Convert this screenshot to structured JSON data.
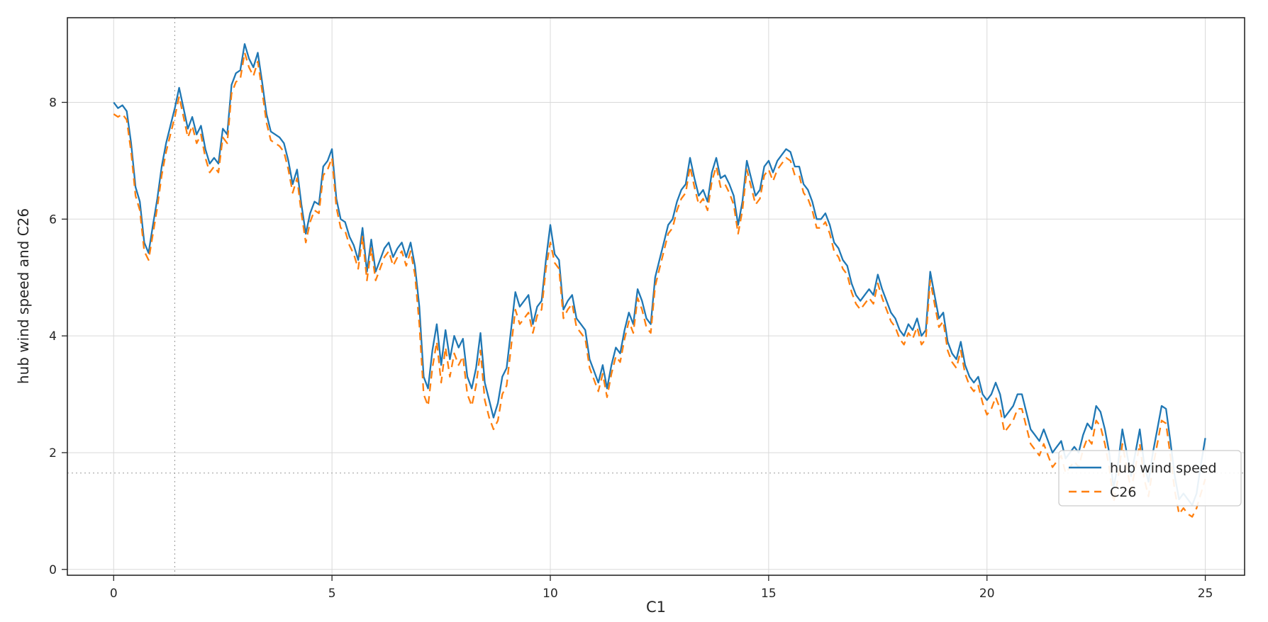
{
  "chart_data": {
    "type": "line",
    "xlabel": "C1",
    "ylabel": "hub wind speed and C26",
    "xlim": [
      -1.06,
      25.9
    ],
    "ylim": [
      -0.1,
      9.45
    ],
    "x_ticks": [
      0,
      5,
      10,
      15,
      20,
      25
    ],
    "y_ticks": [
      0,
      2,
      4,
      6,
      8
    ],
    "grid": true,
    "legend_position": "lower right",
    "crosshair": {
      "x": 1.4,
      "y": 1.65
    },
    "x": [
      0,
      0.1,
      0.2,
      0.3,
      0.4,
      0.5,
      0.6,
      0.7,
      0.8,
      0.9,
      1,
      1.1,
      1.2,
      1.3,
      1.4,
      1.5,
      1.6,
      1.7,
      1.8,
      1.9,
      2,
      2.1,
      2.2,
      2.3,
      2.4,
      2.5,
      2.6,
      2.7,
      2.8,
      2.9,
      3,
      3.1,
      3.2,
      3.3,
      3.4,
      3.5,
      3.6,
      3.7,
      3.8,
      3.9,
      4,
      4.1,
      4.2,
      4.3,
      4.4,
      4.5,
      4.6,
      4.7,
      4.8,
      4.9,
      5,
      5.1,
      5.2,
      5.3,
      5.4,
      5.5,
      5.6,
      5.7,
      5.8,
      5.9,
      6,
      6.1,
      6.2,
      6.3,
      6.4,
      6.5,
      6.6,
      6.7,
      6.8,
      6.9,
      7,
      7.1,
      7.2,
      7.3,
      7.4,
      7.5,
      7.6,
      7.7,
      7.8,
      7.9,
      8,
      8.1,
      8.2,
      8.3,
      8.4,
      8.5,
      8.6,
      8.7,
      8.8,
      8.9,
      9,
      9.1,
      9.2,
      9.3,
      9.4,
      9.5,
      9.6,
      9.7,
      9.8,
      9.9,
      10,
      10.1,
      10.2,
      10.3,
      10.4,
      10.5,
      10.6,
      10.7,
      10.8,
      10.9,
      11,
      11.1,
      11.2,
      11.3,
      11.4,
      11.5,
      11.6,
      11.7,
      11.8,
      11.9,
      12,
      12.1,
      12.2,
      12.3,
      12.4,
      12.5,
      12.6,
      12.7,
      12.8,
      12.9,
      13,
      13.1,
      13.2,
      13.3,
      13.4,
      13.5,
      13.6,
      13.7,
      13.8,
      13.9,
      14,
      14.1,
      14.2,
      14.3,
      14.4,
      14.5,
      14.6,
      14.7,
      14.8,
      14.9,
      15,
      15.1,
      15.2,
      15.3,
      15.4,
      15.5,
      15.6,
      15.7,
      15.8,
      15.9,
      16,
      16.1,
      16.2,
      16.3,
      16.4,
      16.5,
      16.6,
      16.7,
      16.8,
      16.9,
      17,
      17.1,
      17.2,
      17.3,
      17.4,
      17.5,
      17.6,
      17.7,
      17.8,
      17.9,
      18,
      18.1,
      18.2,
      18.3,
      18.4,
      18.5,
      18.6,
      18.7,
      18.8,
      18.9,
      19,
      19.1,
      19.2,
      19.3,
      19.4,
      19.5,
      19.6,
      19.7,
      19.8,
      19.9,
      20,
      20.1,
      20.2,
      20.3,
      20.4,
      20.5,
      20.6,
      20.7,
      20.8,
      20.9,
      21,
      21.1,
      21.2,
      21.3,
      21.4,
      21.5,
      21.6,
      21.7,
      21.8,
      21.9,
      22,
      22.1,
      22.2,
      22.3,
      22.4,
      22.5,
      22.6,
      22.7,
      22.8,
      22.9,
      23,
      23.1,
      23.2,
      23.3,
      23.4,
      23.5,
      23.6,
      23.7,
      23.8,
      23.9,
      24,
      24.1,
      24.2,
      24.3,
      24.4,
      24.5,
      24.6,
      24.7,
      24.8,
      24.9,
      25
    ],
    "series": [
      {
        "name": "hub wind speed",
        "color": "#1f77b4",
        "style": "solid",
        "values": [
          8.0,
          7.9,
          7.95,
          7.85,
          7.3,
          6.55,
          6.3,
          5.6,
          5.42,
          5.9,
          6.35,
          6.9,
          7.3,
          7.6,
          7.9,
          8.25,
          7.9,
          7.55,
          7.75,
          7.45,
          7.6,
          7.2,
          6.95,
          7.05,
          6.95,
          7.55,
          7.45,
          8.3,
          8.5,
          8.55,
          9.0,
          8.75,
          8.6,
          8.85,
          8.35,
          7.8,
          7.5,
          7.45,
          7.4,
          7.3,
          7.0,
          6.6,
          6.85,
          6.25,
          5.75,
          6.1,
          6.3,
          6.25,
          6.9,
          7.0,
          7.2,
          6.35,
          6.0,
          5.95,
          5.7,
          5.55,
          5.3,
          5.85,
          5.1,
          5.65,
          5.1,
          5.3,
          5.5,
          5.6,
          5.35,
          5.5,
          5.6,
          5.35,
          5.6,
          5.2,
          4.5,
          3.3,
          3.1,
          3.75,
          4.2,
          3.5,
          4.1,
          3.6,
          4.0,
          3.8,
          3.95,
          3.3,
          3.1,
          3.45,
          4.05,
          3.2,
          2.9,
          2.6,
          2.85,
          3.3,
          3.45,
          4.1,
          4.75,
          4.5,
          4.6,
          4.7,
          4.2,
          4.5,
          4.6,
          5.3,
          5.9,
          5.4,
          5.3,
          4.45,
          4.6,
          4.7,
          4.3,
          4.2,
          4.1,
          3.6,
          3.4,
          3.2,
          3.5,
          3.1,
          3.5,
          3.8,
          3.7,
          4.1,
          4.4,
          4.2,
          4.8,
          4.6,
          4.3,
          4.2,
          5.0,
          5.3,
          5.6,
          5.9,
          6.0,
          6.3,
          6.5,
          6.6,
          7.05,
          6.7,
          6.4,
          6.5,
          6.3,
          6.8,
          7.05,
          6.7,
          6.75,
          6.6,
          6.4,
          5.9,
          6.3,
          7.0,
          6.7,
          6.4,
          6.5,
          6.9,
          7.0,
          6.8,
          7.0,
          7.1,
          7.2,
          7.15,
          6.9,
          6.9,
          6.6,
          6.5,
          6.3,
          6.0,
          6.0,
          6.1,
          5.9,
          5.6,
          5.5,
          5.3,
          5.2,
          4.9,
          4.7,
          4.6,
          4.7,
          4.8,
          4.7,
          5.05,
          4.8,
          4.6,
          4.4,
          4.3,
          4.1,
          4.0,
          4.2,
          4.1,
          4.3,
          4.0,
          4.1,
          5.1,
          4.7,
          4.3,
          4.4,
          3.9,
          3.7,
          3.6,
          3.9,
          3.5,
          3.3,
          3.2,
          3.3,
          3.0,
          2.9,
          3.0,
          3.2,
          3.0,
          2.6,
          2.7,
          2.8,
          3.0,
          3.0,
          2.7,
          2.4,
          2.3,
          2.2,
          2.4,
          2.2,
          2.0,
          2.1,
          2.2,
          1.9,
          2.0,
          2.1,
          2.0,
          2.3,
          2.5,
          2.4,
          2.8,
          2.7,
          2.4,
          2.0,
          1.4,
          1.8,
          2.4,
          2.0,
          1.6,
          2.0,
          2.4,
          1.8,
          1.5,
          2.0,
          2.4,
          2.8,
          2.75,
          2.2,
          1.6,
          1.2,
          1.3,
          1.2,
          1.1,
          1.3,
          1.8,
          2.25
        ]
      },
      {
        "name": "C26",
        "color": "#ff7f0e",
        "style": "dashed",
        "values": [
          7.8,
          7.75,
          7.8,
          7.7,
          7.15,
          6.4,
          6.15,
          5.45,
          5.3,
          5.75,
          6.2,
          6.75,
          7.15,
          7.45,
          7.75,
          8.1,
          7.75,
          7.4,
          7.6,
          7.3,
          7.45,
          7.05,
          6.8,
          6.9,
          6.8,
          7.4,
          7.3,
          8.15,
          8.35,
          8.4,
          8.85,
          8.6,
          8.45,
          8.7,
          8.2,
          7.65,
          7.35,
          7.3,
          7.25,
          7.15,
          6.85,
          6.45,
          6.7,
          6.1,
          5.6,
          5.95,
          6.15,
          6.1,
          6.75,
          6.85,
          7.05,
          6.2,
          5.85,
          5.8,
          5.55,
          5.4,
          5.15,
          5.7,
          4.95,
          5.5,
          4.95,
          5.15,
          5.35,
          5.45,
          5.2,
          5.35,
          5.45,
          5.2,
          5.45,
          5.05,
          4.2,
          3.0,
          2.8,
          3.45,
          3.9,
          3.2,
          3.8,
          3.3,
          3.7,
          3.5,
          3.65,
          3.0,
          2.8,
          3.15,
          3.75,
          2.9,
          2.6,
          2.4,
          2.55,
          3.0,
          3.15,
          3.8,
          4.45,
          4.2,
          4.3,
          4.4,
          4.05,
          4.35,
          4.45,
          5.15,
          5.6,
          5.25,
          5.15,
          4.3,
          4.45,
          4.55,
          4.15,
          4.05,
          3.95,
          3.45,
          3.25,
          3.05,
          3.35,
          2.95,
          3.35,
          3.65,
          3.55,
          3.95,
          4.25,
          4.05,
          4.65,
          4.45,
          4.15,
          4.05,
          4.85,
          5.15,
          5.45,
          5.75,
          5.85,
          6.15,
          6.35,
          6.45,
          6.9,
          6.55,
          6.25,
          6.35,
          6.15,
          6.65,
          6.9,
          6.55,
          6.6,
          6.45,
          6.25,
          5.75,
          6.15,
          6.85,
          6.55,
          6.25,
          6.35,
          6.75,
          6.85,
          6.65,
          6.85,
          6.95,
          7.05,
          7.0,
          6.75,
          6.75,
          6.45,
          6.35,
          6.15,
          5.85,
          5.85,
          5.95,
          5.75,
          5.45,
          5.35,
          5.15,
          5.05,
          4.75,
          4.55,
          4.45,
          4.55,
          4.65,
          4.55,
          4.9,
          4.65,
          4.45,
          4.25,
          4.15,
          3.95,
          3.85,
          4.05,
          3.95,
          4.15,
          3.85,
          3.95,
          4.95,
          4.55,
          4.15,
          4.25,
          3.75,
          3.55,
          3.45,
          3.75,
          3.35,
          3.15,
          3.05,
          3.15,
          2.85,
          2.65,
          2.75,
          2.95,
          2.75,
          2.35,
          2.45,
          2.55,
          2.75,
          2.75,
          2.45,
          2.15,
          2.05,
          1.95,
          2.15,
          1.95,
          1.75,
          1.85,
          1.95,
          1.65,
          1.75,
          1.85,
          1.75,
          2.05,
          2.25,
          2.15,
          2.55,
          2.45,
          2.15,
          1.75,
          1.15,
          1.55,
          2.15,
          1.75,
          1.35,
          1.75,
          2.15,
          1.55,
          1.25,
          1.75,
          2.15,
          2.55,
          2.5,
          1.95,
          1.35,
          0.95,
          1.05,
          0.95,
          0.9,
          1.05,
          1.3,
          1.55
        ]
      }
    ]
  }
}
